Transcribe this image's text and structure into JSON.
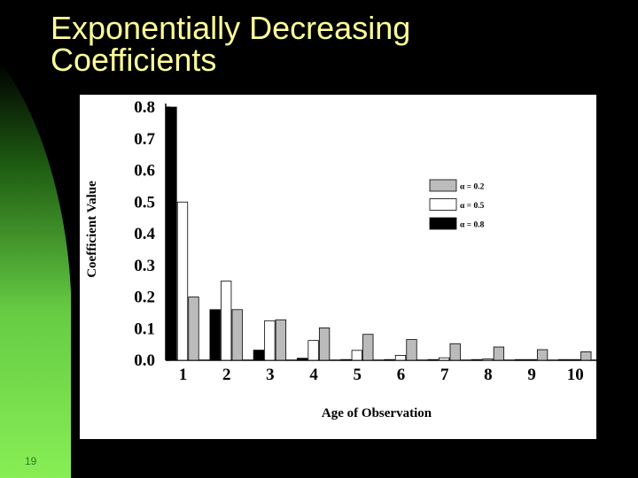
{
  "slide": {
    "title_lines": [
      "Exponentially Decreasing",
      "Coefficients"
    ],
    "page_number": "19",
    "colors": {
      "background": "#000000",
      "title": "#ffff99",
      "accent_green": "#88ee55",
      "page_number": "#2f7a20"
    }
  },
  "chart_data": {
    "type": "bar",
    "xlabel": "Age of Observation",
    "ylabel": "Coefficient Value",
    "categories": [
      "1",
      "2",
      "3",
      "4",
      "5",
      "6",
      "7",
      "8",
      "9",
      "10"
    ],
    "ylim": [
      0.0,
      0.8
    ],
    "yticks": [
      "0.0",
      "0.1",
      "0.2",
      "0.3",
      "0.4",
      "0.5",
      "0.6",
      "0.7",
      "0.8"
    ],
    "grid": false,
    "legend_position": "top-right",
    "series": [
      {
        "name": "α = 0.8",
        "color": "#000000",
        "values": [
          0.8,
          0.16,
          0.032,
          0.0064,
          0.00128,
          0.000256,
          5.12e-05,
          1.024e-05,
          2.048e-06,
          4.096e-07
        ]
      },
      {
        "name": "α = 0.5",
        "color": "#ffffff",
        "values": [
          0.5,
          0.25,
          0.125,
          0.0625,
          0.03125,
          0.015625,
          0.0078125,
          0.00390625,
          0.001953125,
          0.0009765625
        ]
      },
      {
        "name": "α = 0.2",
        "color": "#bbbbbb",
        "values": [
          0.2,
          0.16,
          0.128,
          0.1024,
          0.08192,
          0.065536,
          0.0524288,
          0.04194304,
          0.033554432,
          0.0268435456
        ]
      }
    ],
    "legend_order": [
      "α = 0.2",
      "α = 0.5",
      "α = 0.8"
    ]
  }
}
